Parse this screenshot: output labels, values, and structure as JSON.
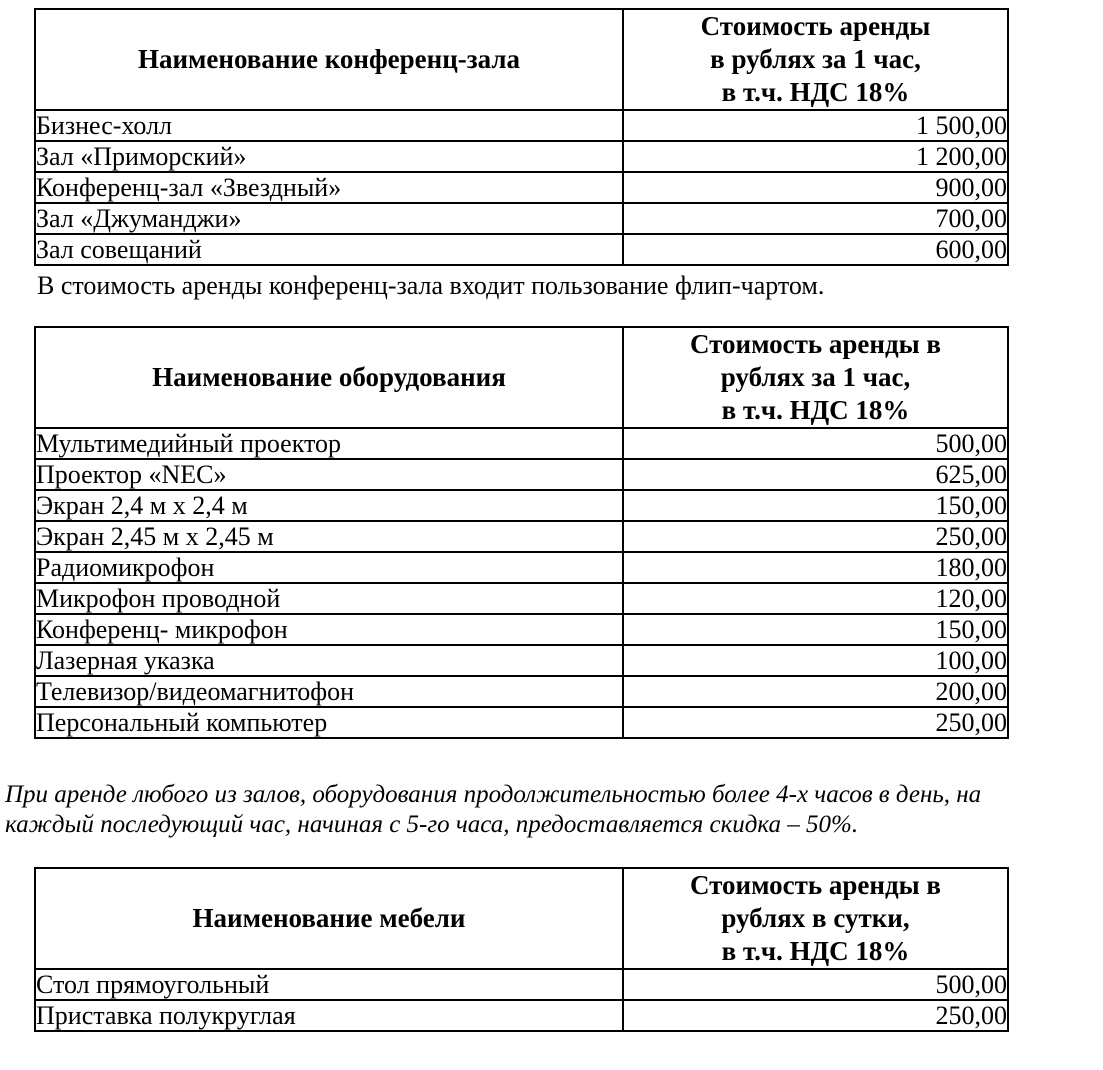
{
  "notes": {
    "flipchart": "В стоимость аренды конференц-зала входит пользование флип-чартом.",
    "discount": "При аренде любого из залов, оборудования продолжительностью более 4-х часов в день, на\nкаждый последующий час, начиная с 5-го часа, предоставляется скидка – 50%."
  },
  "tables": [
    {
      "col1_header": "Наименование конференц-зала",
      "col2_header": "Стоимость аренды\nв рублях за 1 час,\nв т.ч. НДС 18%",
      "rows": [
        {
          "name": "Бизнес-холл",
          "price": "1 500,00"
        },
        {
          "name": "Зал «Приморский»",
          "price": "1 200,00"
        },
        {
          "name": "Конференц-зал «Звездный»",
          "price": "900,00"
        },
        {
          "name": "Зал «Джуманджи»",
          "price": "700,00"
        },
        {
          "name": "Зал совещаний",
          "price": "600,00"
        }
      ]
    },
    {
      "col1_header": "Наименование оборудования",
      "col2_header": "Стоимость аренды в\nрублях за 1 час,\nв т.ч. НДС 18%",
      "rows": [
        {
          "name": "Мультимедийный проектор",
          "price": "500,00"
        },
        {
          "name": "Проектор «NEC»",
          "price": "625,00"
        },
        {
          "name": "Экран 2,4 м х 2,4 м",
          "price": "150,00"
        },
        {
          "name": "Экран 2,45 м х 2,45 м",
          "price": "250,00"
        },
        {
          "name": "Радиомикрофон",
          "price": "180,00"
        },
        {
          "name": "Микрофон проводной",
          "price": "120,00"
        },
        {
          "name": "Конференц- микрофон",
          "price": "150,00"
        },
        {
          "name": "Лазерная указка",
          "price": "100,00"
        },
        {
          "name": "Телевизор/видеомагнитофон",
          "price": "200,00"
        },
        {
          "name": "Персональный компьютер",
          "price": "250,00"
        }
      ]
    },
    {
      "col1_header": "Наименование мебели",
      "col2_header": "Стоимость аренды в\nрублях в сутки,\nв т.ч. НДС 18%",
      "rows": [
        {
          "name": "Стол прямоугольный",
          "price": "500,00"
        },
        {
          "name": "Приставка полукруглая",
          "price": "250,00"
        }
      ]
    }
  ]
}
